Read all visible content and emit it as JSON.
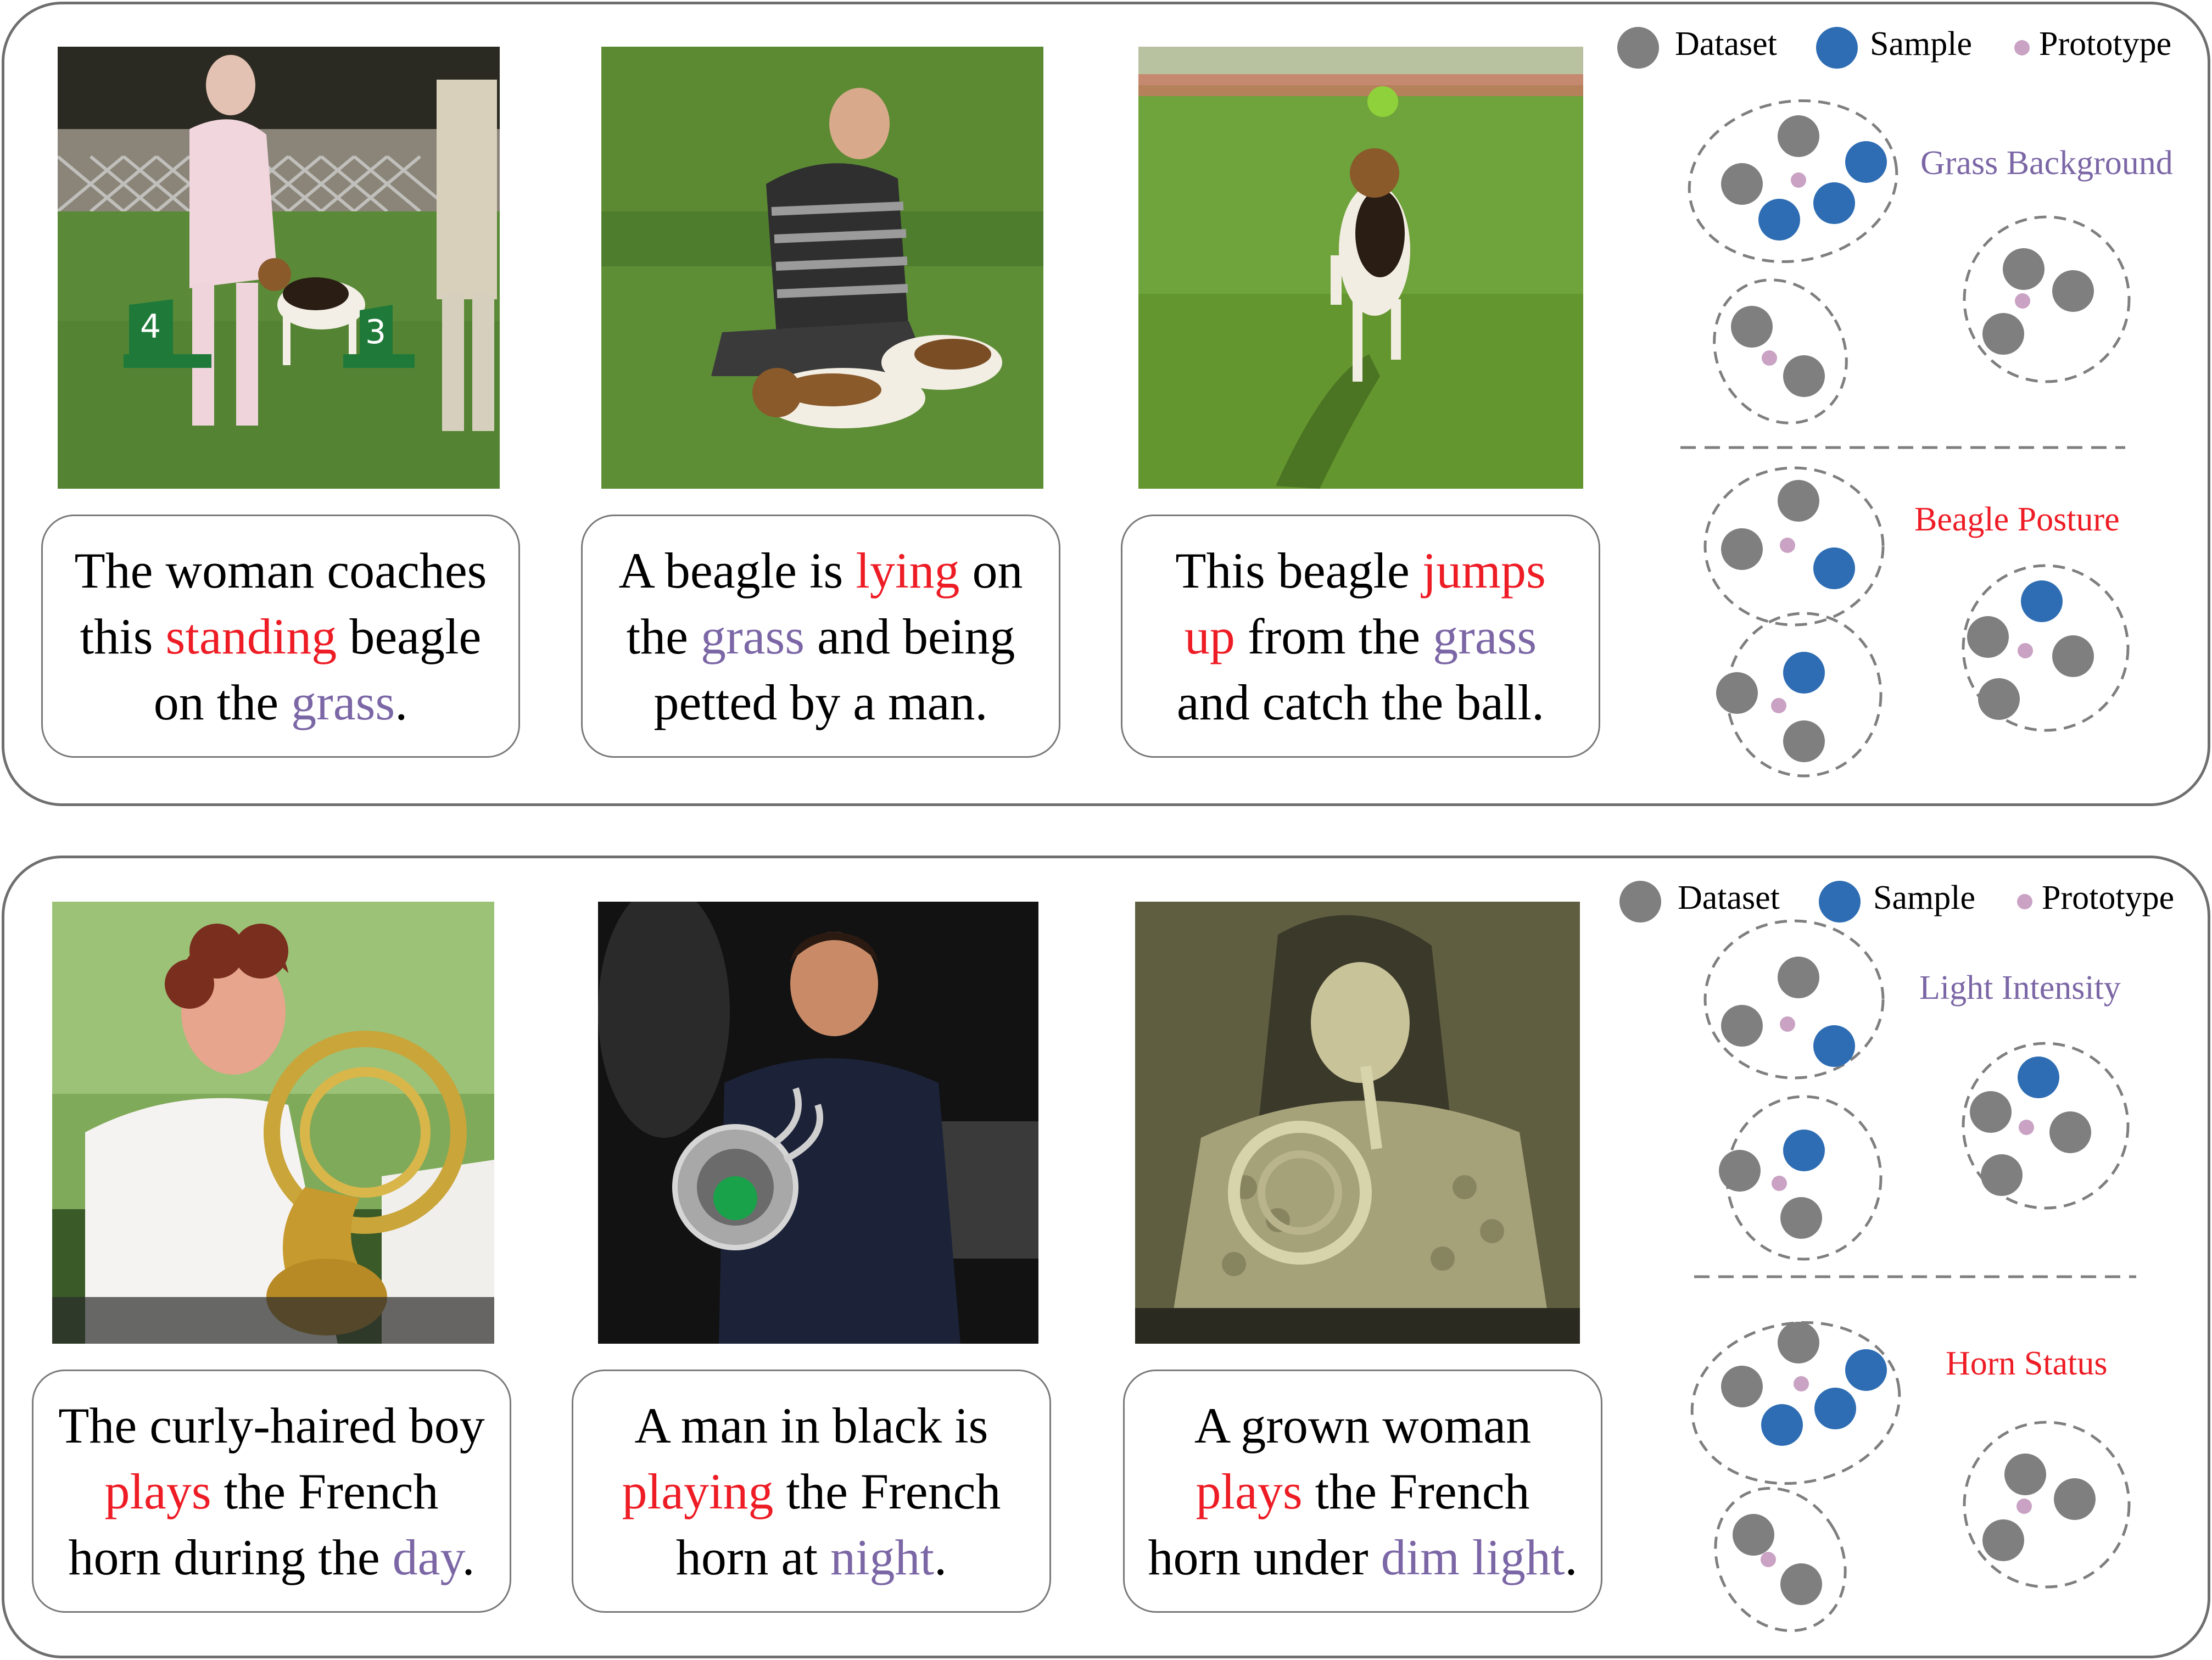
{
  "colors": {
    "dataset": "#7f7f7f",
    "sample": "#2e6db3",
    "prototype": "#c9a2c4",
    "emphasis_action": "#ee1c25",
    "emphasis_context": "#7c67a6",
    "border": "#6f6f6f"
  },
  "panels": [
    {
      "name": "beagle",
      "legend": {
        "dataset": "Dataset",
        "sample": "Sample",
        "prototype": "Prototype"
      },
      "topics": {
        "first": "Grass Background",
        "second": "Beagle Posture"
      },
      "captions": [
        {
          "lines": [
            [
              {
                "t": "The woman coaches",
                "s": ""
              }
            ],
            [
              {
                "t": "this ",
                "s": ""
              },
              {
                "t": "standing",
                "s": "red"
              },
              {
                "t": " beagle",
                "s": ""
              }
            ],
            [
              {
                "t": "on the ",
                "s": ""
              },
              {
                "t": "grass",
                "s": "purple"
              },
              {
                "t": ".",
                "s": ""
              }
            ]
          ]
        },
        {
          "lines": [
            [
              {
                "t": "A beagle is ",
                "s": ""
              },
              {
                "t": "lying",
                "s": "red"
              },
              {
                "t": " on",
                "s": ""
              }
            ],
            [
              {
                "t": "the ",
                "s": ""
              },
              {
                "t": "grass",
                "s": "purple"
              },
              {
                "t": " and being",
                "s": ""
              }
            ],
            [
              {
                "t": "petted by a man.",
                "s": ""
              }
            ]
          ]
        },
        {
          "lines": [
            [
              {
                "t": "This beagle  ",
                "s": ""
              },
              {
                "t": "jumps",
                "s": "red"
              }
            ],
            [
              {
                "t": "up",
                "s": "red"
              },
              {
                "t": " from the ",
                "s": ""
              },
              {
                "t": "grass",
                "s": "purple"
              }
            ],
            [
              {
                "t": "and catch the ball.",
                "s": ""
              }
            ]
          ]
        }
      ]
    },
    {
      "name": "horn",
      "legend": {
        "dataset": "Dataset",
        "sample": "Sample",
        "prototype": "Prototype"
      },
      "topics": {
        "first": "Light Intensity",
        "second": "Horn Status"
      },
      "captions": [
        {
          "lines": [
            [
              {
                "t": "The curly-haired boy",
                "s": ""
              }
            ],
            [
              {
                "t": "plays",
                "s": "red"
              },
              {
                "t": " the French",
                "s": ""
              }
            ],
            [
              {
                "t": "horn during the ",
                "s": ""
              },
              {
                "t": "day",
                "s": "purple"
              },
              {
                "t": ".",
                "s": ""
              }
            ]
          ]
        },
        {
          "lines": [
            [
              {
                "t": "A man in black is",
                "s": ""
              }
            ],
            [
              {
                "t": "playing",
                "s": "red"
              },
              {
                "t": " the French",
                "s": ""
              }
            ],
            [
              {
                "t": "horn at ",
                "s": ""
              },
              {
                "t": "night",
                "s": "purple"
              },
              {
                "t": ".",
                "s": ""
              }
            ]
          ]
        },
        {
          "lines": [
            [
              {
                "t": "A grown woman",
                "s": ""
              }
            ],
            [
              {
                "t": "plays",
                "s": "red"
              },
              {
                "t": " the French",
                "s": ""
              }
            ],
            [
              {
                "t": "horn under ",
                "s": ""
              },
              {
                "t": "dim light",
                "s": "purple"
              },
              {
                "t": ".",
                "s": ""
              }
            ]
          ]
        }
      ]
    }
  ]
}
